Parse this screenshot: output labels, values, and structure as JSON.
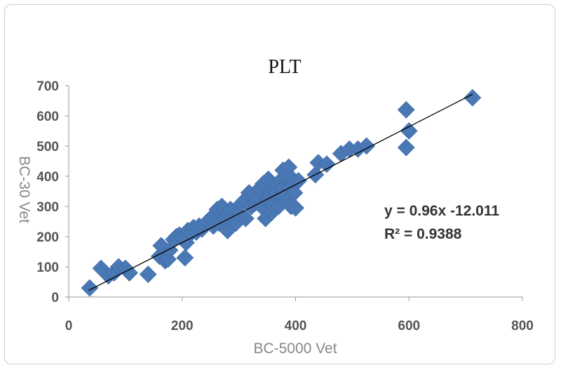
{
  "chart_data": {
    "type": "scatter",
    "title": "PLT",
    "xlabel": "BC-5000 Vet",
    "ylabel": "BC-30 Vet",
    "xlim": [
      0,
      800
    ],
    "ylim": [
      0,
      700
    ],
    "x_ticks": [
      "0",
      "200",
      "400",
      "600",
      "800"
    ],
    "y_ticks": [
      "0",
      "100",
      "200",
      "300",
      "400",
      "500",
      "600",
      "700"
    ],
    "grid": false,
    "marker_color": "#4a78b4",
    "trendline": {
      "slope": 0.96,
      "intercept": -12.011,
      "x_range": [
        35,
        712
      ],
      "equation_text": "y = 0.96x -12.011",
      "r2_text": "R² = 0.9388"
    },
    "series": [
      {
        "points": [
          [
            37,
            30
          ],
          [
            57,
            95
          ],
          [
            70,
            70
          ],
          [
            80,
            80
          ],
          [
            88,
            100
          ],
          [
            100,
            95
          ],
          [
            107,
            80
          ],
          [
            140,
            75
          ],
          [
            160,
            135
          ],
          [
            163,
            170
          ],
          [
            170,
            120
          ],
          [
            175,
            125
          ],
          [
            178,
            155
          ],
          [
            185,
            190
          ],
          [
            190,
            200
          ],
          [
            195,
            205
          ],
          [
            200,
            195
          ],
          [
            205,
            130
          ],
          [
            207,
            180
          ],
          [
            210,
            220
          ],
          [
            215,
            210
          ],
          [
            220,
            230
          ],
          [
            225,
            215
          ],
          [
            230,
            235
          ],
          [
            235,
            225
          ],
          [
            240,
            240
          ],
          [
            245,
            250
          ],
          [
            250,
            260
          ],
          [
            255,
            235
          ],
          [
            258,
            270
          ],
          [
            262,
            290
          ],
          [
            265,
            245
          ],
          [
            270,
            300
          ],
          [
            275,
            255
          ],
          [
            280,
            220
          ],
          [
            285,
            290
          ],
          [
            290,
            265
          ],
          [
            295,
            245
          ],
          [
            300,
            275
          ],
          [
            305,
            310
          ],
          [
            310,
            320
          ],
          [
            312,
            260
          ],
          [
            318,
            345
          ],
          [
            322,
            300
          ],
          [
            328,
            310
          ],
          [
            333,
            330
          ],
          [
            337,
            360
          ],
          [
            340,
            300
          ],
          [
            343,
            375
          ],
          [
            347,
            260
          ],
          [
            350,
            320
          ],
          [
            352,
            390
          ],
          [
            355,
            340
          ],
          [
            358,
            280
          ],
          [
            360,
            305
          ],
          [
            363,
            370
          ],
          [
            366,
            345
          ],
          [
            370,
            300
          ],
          [
            373,
            385
          ],
          [
            376,
            355
          ],
          [
            378,
            420
          ],
          [
            380,
            330
          ],
          [
            383,
            400
          ],
          [
            385,
            315
          ],
          [
            388,
            430
          ],
          [
            390,
            360
          ],
          [
            392,
            300
          ],
          [
            395,
            390
          ],
          [
            398,
            345
          ],
          [
            400,
            295
          ],
          [
            405,
            385
          ],
          [
            435,
            405
          ],
          [
            440,
            445
          ],
          [
            455,
            440
          ],
          [
            480,
            475
          ],
          [
            495,
            490
          ],
          [
            510,
            490
          ],
          [
            525,
            500
          ],
          [
            595,
            620
          ],
          [
            595,
            495
          ],
          [
            600,
            550
          ],
          [
            712,
            660
          ]
        ]
      }
    ]
  }
}
